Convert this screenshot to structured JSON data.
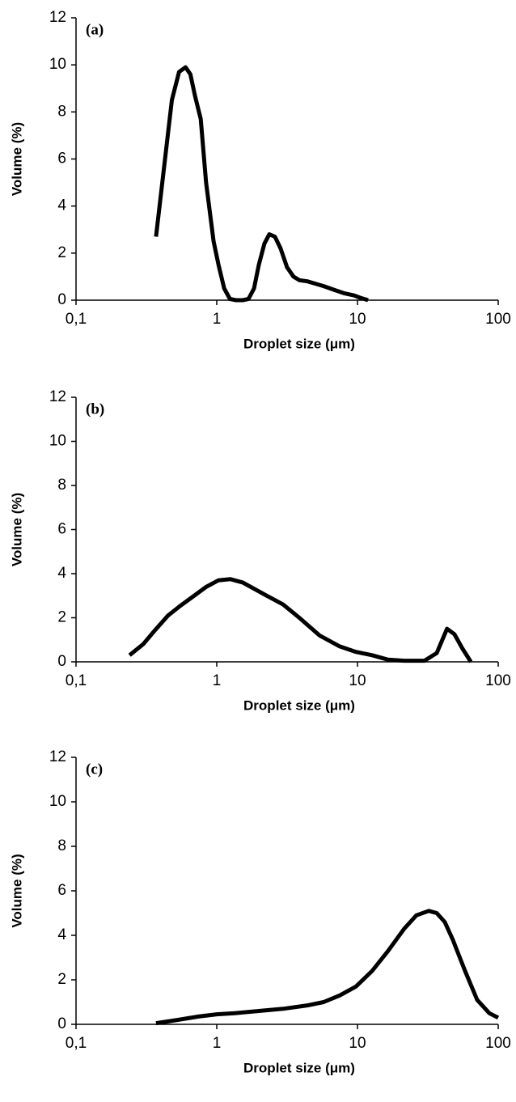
{
  "chart_data": [
    {
      "type": "line",
      "annotation": "(a)",
      "xlabel": "Droplet size (μm)",
      "ylabel": "Volume (%)",
      "color": "#000000",
      "xscale": "log",
      "xlim": [
        0.1,
        100
      ],
      "xticks": [
        {
          "value": 0.1,
          "label": "0,1"
        },
        1,
        10,
        100
      ],
      "ylim": [
        0,
        12
      ],
      "yticks": [
        0,
        2,
        4,
        6,
        8,
        10,
        12
      ],
      "x": [
        0.37,
        0.48,
        0.54,
        0.6,
        0.65,
        0.7,
        0.77,
        0.84,
        0.95,
        1.03,
        1.13,
        1.24,
        1.37,
        1.53,
        1.68,
        1.84,
        1.99,
        2.18,
        2.36,
        2.59,
        2.84,
        3.16,
        3.51,
        3.86,
        4.4,
        5.02,
        5.74,
        6.73,
        7.98,
        9.48,
        10.5,
        11.9
      ],
      "values": [
        2.7,
        8.5,
        9.7,
        9.9,
        9.6,
        8.7,
        7.7,
        5,
        2.5,
        1.5,
        0.5,
        0.05,
        0,
        0,
        0.05,
        0.5,
        1.5,
        2.4,
        2.8,
        2.7,
        2.2,
        1.4,
        1,
        0.85,
        0.8,
        0.7,
        0.6,
        0.45,
        0.3,
        0.2,
        0.1,
        0
      ]
    },
    {
      "type": "line",
      "annotation": "(b)",
      "xlabel": "Droplet size (μm)",
      "ylabel": "Volume (%)",
      "color": "#000000",
      "xscale": "log",
      "xlim": [
        0.1,
        100
      ],
      "xticks": [
        {
          "value": 0.1,
          "label": "0,1"
        },
        1,
        10,
        100
      ],
      "ylim": [
        0,
        12
      ],
      "yticks": [
        0,
        2,
        4,
        6,
        8,
        10,
        12
      ],
      "x": [
        0.24,
        0.3,
        0.36,
        0.45,
        0.54,
        0.69,
        0.84,
        1.03,
        1.25,
        1.53,
        1.86,
        2.27,
        2.96,
        3.86,
        5.37,
        7.47,
        9.75,
        12.7,
        16.5,
        21.5,
        29.9,
        36.6,
        43.3,
        48.9,
        55.7,
        63.9
      ],
      "values": [
        0.3,
        0.8,
        1.4,
        2.1,
        2.5,
        3,
        3.4,
        3.7,
        3.75,
        3.6,
        3.3,
        3,
        2.6,
        2,
        1.2,
        0.7,
        0.45,
        0.3,
        0.1,
        0.05,
        0.05,
        0.4,
        1.5,
        1.25,
        0.6,
        0
      ]
    },
    {
      "type": "line",
      "annotation": "(c)",
      "xlabel": "Droplet size (μm)",
      "ylabel": "Volume (%)",
      "color": "#000000",
      "xscale": "log",
      "xlim": [
        0.1,
        100
      ],
      "xticks": [
        {
          "value": 0.1,
          "label": "0,1"
        },
        1,
        10,
        100
      ],
      "ylim": [
        0,
        12
      ],
      "yticks": [
        0,
        2,
        4,
        6,
        8,
        10,
        12
      ],
      "x": [
        0.37,
        0.53,
        0.74,
        1,
        1.34,
        1.99,
        2.96,
        4.4,
        5.74,
        7.47,
        9.75,
        12.7,
        16.5,
        21.5,
        26.2,
        32.1,
        36.6,
        41.7,
        47.6,
        58.1,
        70.9,
        86.6,
        100
      ],
      "values": [
        0.05,
        0.2,
        0.35,
        0.45,
        0.5,
        0.6,
        0.7,
        0.85,
        1,
        1.3,
        1.7,
        2.4,
        3.3,
        4.3,
        4.9,
        5.1,
        5,
        4.6,
        3.8,
        2.4,
        1.1,
        0.5,
        0.3
      ]
    }
  ]
}
